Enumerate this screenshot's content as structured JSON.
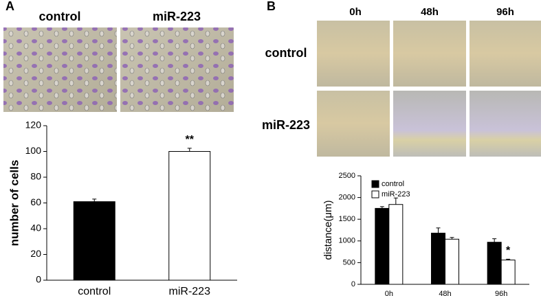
{
  "figure": {
    "panel_labels": [
      "A",
      "B"
    ],
    "a_image_labels": [
      "control",
      "miR-223"
    ],
    "b_column_labels": [
      "0h",
      "48h",
      "96h"
    ],
    "b_row_labels": [
      "control",
      "miR-223"
    ]
  },
  "chart_data": [
    {
      "type": "bar",
      "ylabel": "number of cells",
      "categories": [
        "control",
        "miR-223"
      ],
      "values": [
        61,
        100
      ],
      "errors": [
        2,
        2.5
      ],
      "colors": [
        "#000000",
        "#ffffff"
      ],
      "ylim": [
        0,
        120
      ],
      "yticks": [
        0,
        20,
        40,
        60,
        80,
        100,
        120
      ],
      "annotations": [
        {
          "text": "**",
          "category": "miR-223"
        }
      ]
    },
    {
      "type": "bar",
      "ylabel": "distance(μm)",
      "categories": [
        "0h",
        "48h",
        "96h"
      ],
      "series": [
        {
          "name": "control",
          "color": "#000000",
          "values": [
            1750,
            1180,
            970
          ],
          "errors": [
            40,
            120,
            80
          ]
        },
        {
          "name": "miR-223",
          "color": "#ffffff",
          "values": [
            1840,
            1040,
            560
          ],
          "errors": [
            150,
            40,
            20
          ]
        }
      ],
      "ylim": [
        0,
        2500
      ],
      "yticks": [
        0,
        500,
        1000,
        1500,
        2000,
        2500
      ],
      "legend": "upper left",
      "annotations": [
        {
          "text": "*",
          "category": "96h",
          "series": "miR-223"
        }
      ]
    }
  ]
}
